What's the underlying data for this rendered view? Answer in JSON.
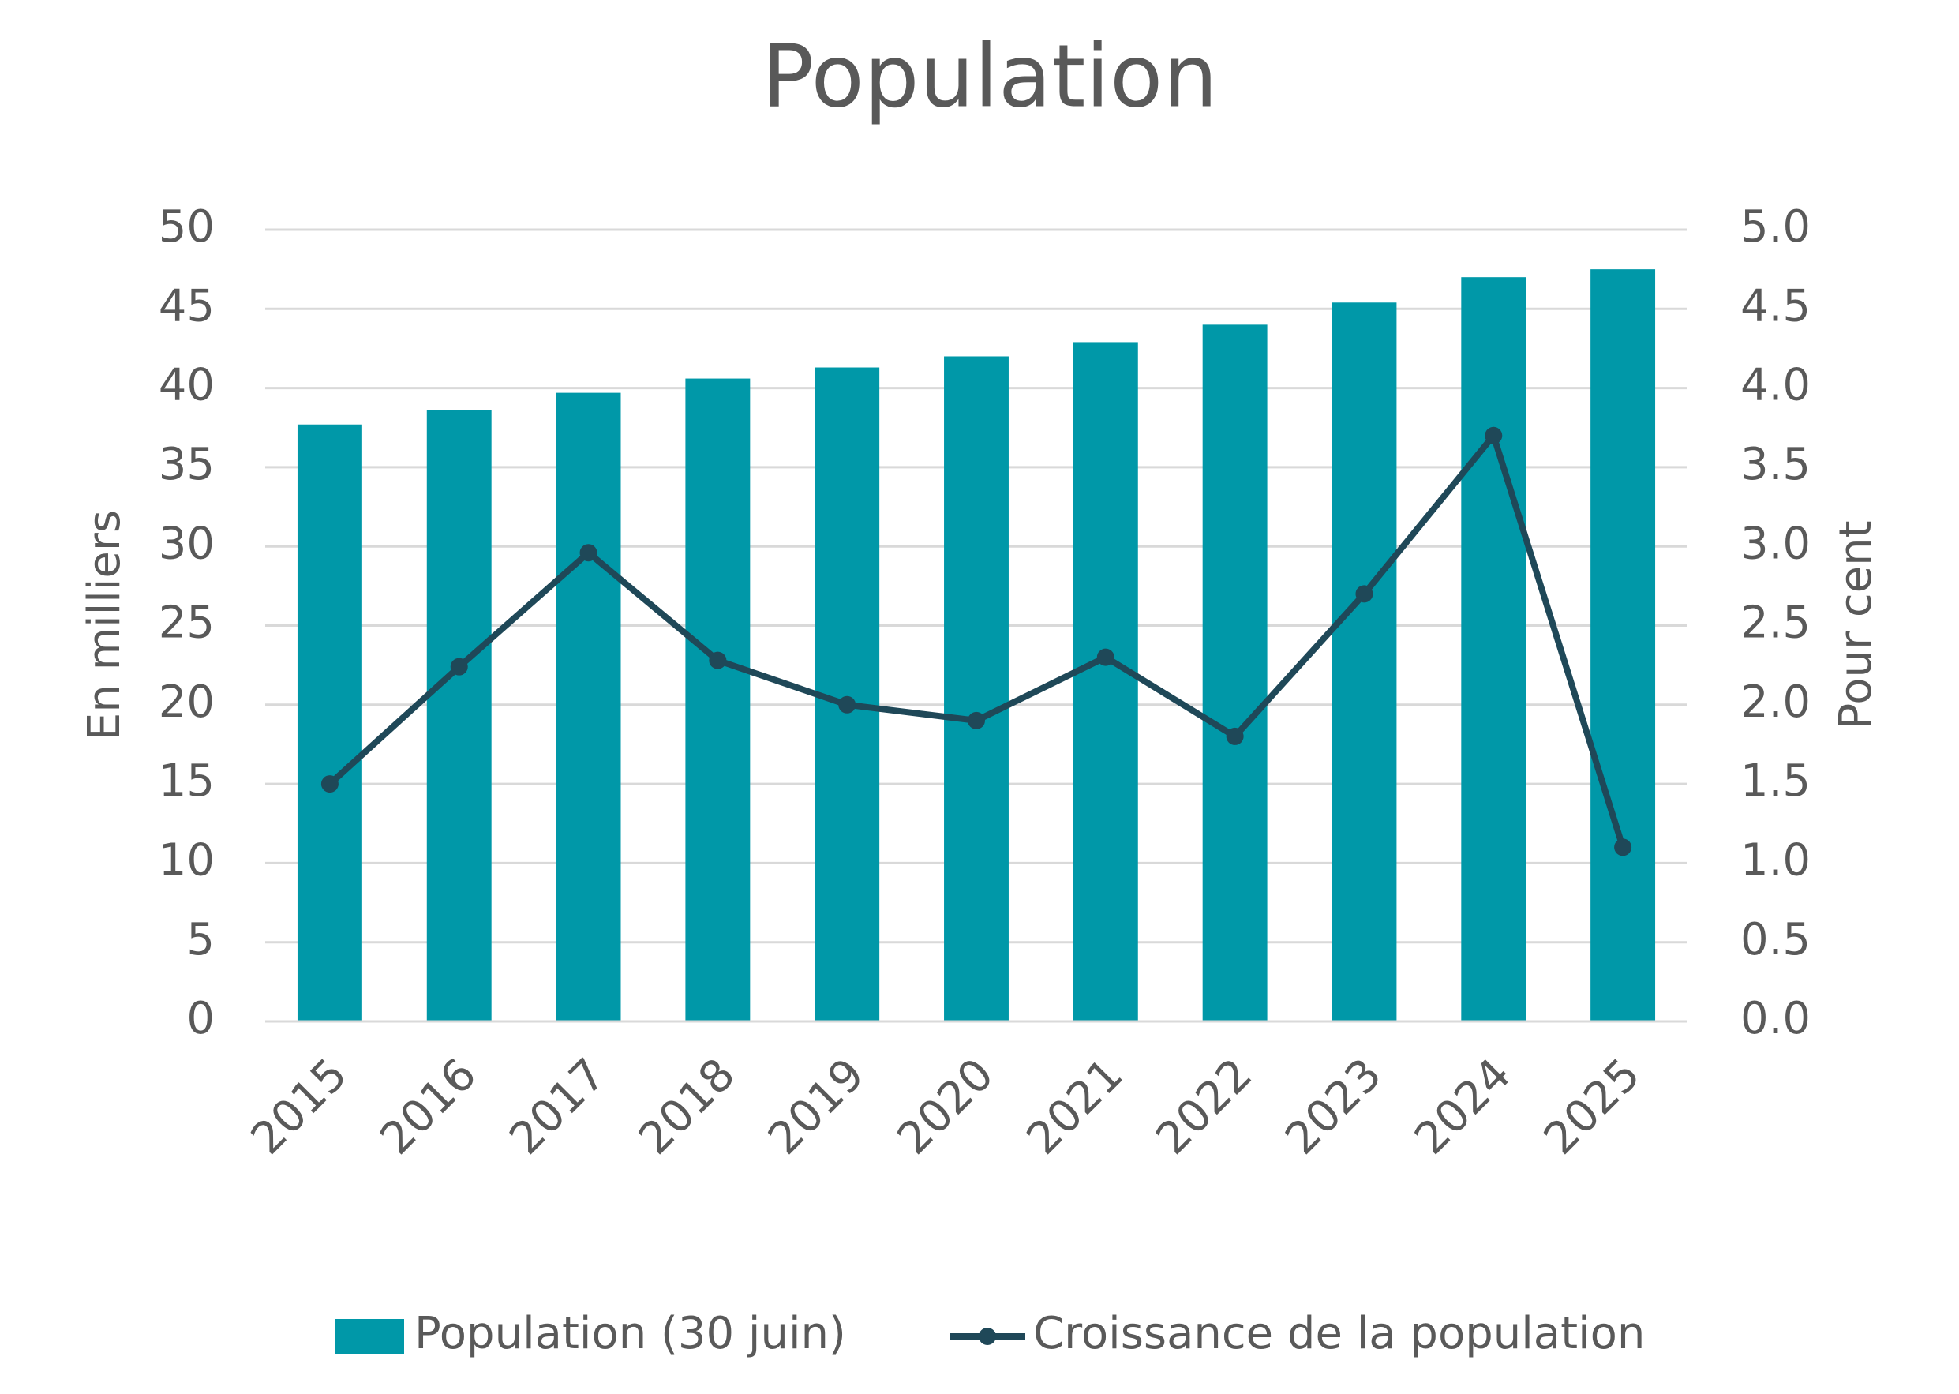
{
  "chart_data": {
    "type": "bar-line",
    "title": "Population",
    "categories": [
      "2015",
      "2016",
      "2017",
      "2018",
      "2019",
      "2020",
      "2021",
      "2022",
      "2023",
      "2024",
      "2025"
    ],
    "series": [
      {
        "name": "Population (30 juin)",
        "type": "bar",
        "color": "#0098a8",
        "values": [
          37.7,
          38.6,
          39.7,
          40.6,
          41.3,
          42.0,
          42.9,
          44.0,
          45.4,
          47.0,
          47.5
        ]
      },
      {
        "name": "Croissance de la population",
        "type": "line",
        "axis": "y2",
        "color": "#1f4858",
        "values": [
          1.5,
          2.24,
          2.96,
          2.28,
          2.0,
          1.9,
          2.3,
          1.8,
          2.7,
          3.7,
          1.1
        ]
      }
    ],
    "ylabel": "En milliers",
    "y2label": "Pour cent",
    "ylim": [
      0,
      50
    ],
    "yticks": [
      0,
      5,
      10,
      15,
      20,
      25,
      30,
      35,
      40,
      45,
      50
    ],
    "y2lim": [
      0,
      5
    ],
    "y2ticks": [
      {
        "value": 0,
        "label": "0.0"
      },
      0.5,
      {
        "value": 1,
        "label": "1.0"
      },
      1.5,
      {
        "value": 2,
        "label": "2.0"
      },
      2.5,
      {
        "value": 3,
        "label": "3.0"
      },
      3.5,
      {
        "value": 4,
        "label": "4.0"
      },
      4.5,
      {
        "value": 5,
        "label": "5.0"
      }
    ],
    "grid": true,
    "legend": "bottom"
  }
}
